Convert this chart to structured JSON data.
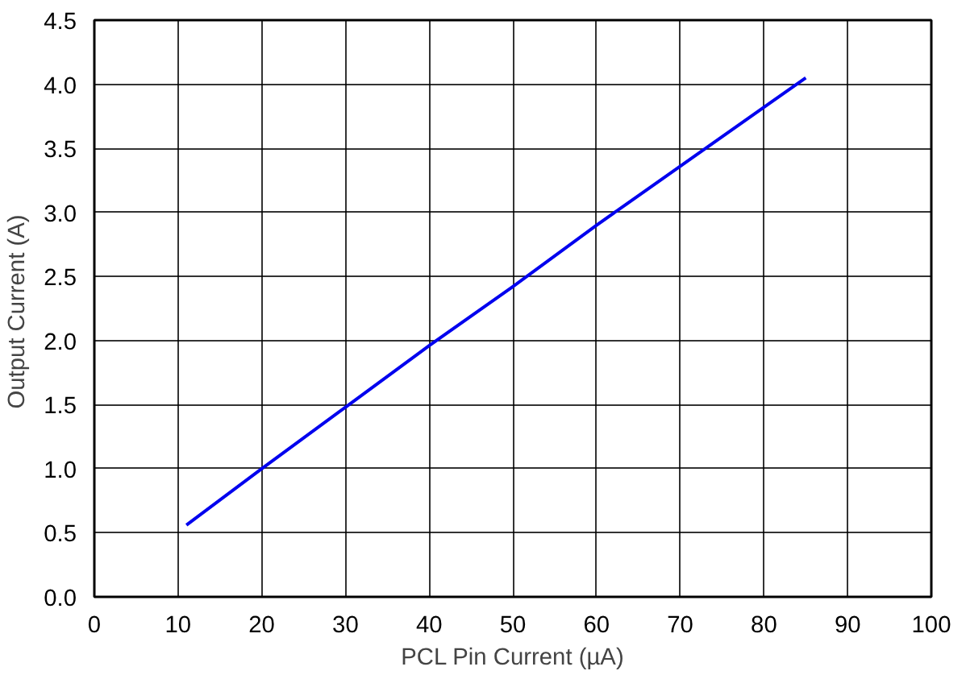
{
  "chart_data": {
    "type": "line",
    "xlabel": "PCL Pin Current (µA)",
    "ylabel": "Output  Current (A)",
    "x": [
      11,
      20,
      30,
      40,
      50,
      60,
      70,
      80,
      85
    ],
    "series": [
      {
        "color": "#0000ee",
        "values": [
          0.56,
          1.0,
          1.48,
          1.96,
          2.42,
          2.9,
          3.36,
          3.82,
          4.05
        ]
      }
    ],
    "xlim": [
      0,
      100
    ],
    "xticks": [
      0,
      10,
      20,
      30,
      40,
      50,
      60,
      70,
      80,
      90,
      100
    ],
    "ylim": [
      0,
      4.5
    ],
    "yticks": [
      {
        "value": 0,
        "label": "0.0"
      },
      {
        "value": 0.5,
        "label": "0.5"
      },
      {
        "value": 1,
        "label": "1.0"
      },
      {
        "value": 1.5,
        "label": "1.5"
      },
      {
        "value": 2,
        "label": "2.0"
      },
      {
        "value": 2.5,
        "label": "2.5"
      },
      {
        "value": 3,
        "label": "3.0"
      },
      {
        "value": 3.5,
        "label": "3.5"
      },
      {
        "value": 4,
        "label": "4.0"
      },
      {
        "value": 4.5,
        "label": "4.5"
      }
    ],
    "grid": true,
    "marker": "none",
    "line_style": "solid"
  }
}
